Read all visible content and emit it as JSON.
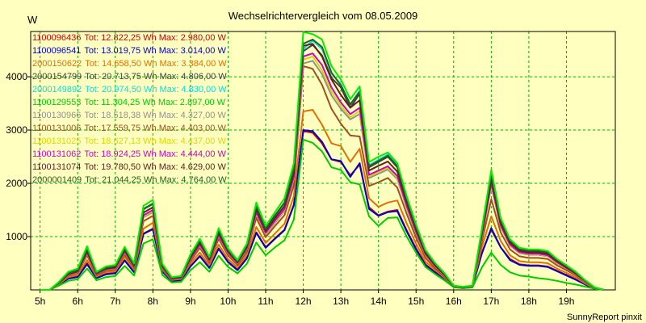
{
  "chart_data": {
    "type": "line",
    "title": "Wechselrichtervergleich vom 08.05.2009",
    "ylabel": "W",
    "xlabel": "",
    "footer": "SunnyReport pinxit",
    "ylim": [
      0,
      4850
    ],
    "xlim": [
      4.75,
      20.3
    ],
    "grid": true,
    "legend_position": "top-left",
    "yticks": [
      1000,
      2000,
      3000,
      4000
    ],
    "xticks": [
      {
        "value": 5,
        "label": "5h"
      },
      {
        "value": 6,
        "label": "6h"
      },
      {
        "value": 7,
        "label": "7h"
      },
      {
        "value": 8,
        "label": "8h"
      },
      {
        "value": 9,
        "label": "9h"
      },
      {
        "value": 10,
        "label": "10h"
      },
      {
        "value": 11,
        "label": "11h"
      },
      {
        "value": 12,
        "label": "12h"
      },
      {
        "value": 13,
        "label": "13h"
      },
      {
        "value": 14,
        "label": "14h"
      },
      {
        "value": 15,
        "label": "15h"
      },
      {
        "value": 16,
        "label": "16h"
      },
      {
        "value": 17,
        "label": "17h"
      },
      {
        "value": 18,
        "label": "18h"
      },
      {
        "value": 19,
        "label": "19h"
      }
    ],
    "x": [
      5.0,
      5.25,
      5.5,
      5.75,
      6.0,
      6.25,
      6.5,
      6.75,
      7.0,
      7.25,
      7.5,
      7.75,
      8.0,
      8.25,
      8.5,
      8.75,
      9.0,
      9.25,
      9.5,
      9.75,
      10.0,
      10.25,
      10.5,
      10.75,
      11.0,
      11.25,
      11.5,
      11.75,
      12.0,
      12.25,
      12.5,
      12.75,
      13.0,
      13.25,
      13.5,
      13.75,
      14.0,
      14.25,
      14.5,
      14.75,
      15.0,
      15.25,
      15.5,
      15.75,
      16.0,
      16.25,
      16.5,
      16.75,
      17.0,
      17.25,
      17.5,
      17.75,
      18.0,
      18.25,
      18.5,
      18.75,
      19.0,
      19.25,
      19.5,
      19.75,
      20.0
    ],
    "series": [
      {
        "name": "1100096436",
        "color": "#cc0000",
        "legend": {
          "id": "1100096436",
          "text": "Tot: 12.822,25 Wh Max: 2.980,00 W"
        },
        "values": [
          0,
          0,
          100,
          220,
          250,
          500,
          230,
          300,
          320,
          560,
          340,
          1060,
          1150,
          350,
          170,
          190,
          450,
          640,
          420,
          780,
          530,
          380,
          600,
          1080,
          800,
          970,
          1130,
          1600,
          2980,
          2950,
          2750,
          2450,
          2400,
          2150,
          2350,
          1550,
          1400,
          1470,
          1500,
          1120,
          780,
          480,
          340,
          210,
          60,
          40,
          60,
          700,
          1130,
          800,
          580,
          480,
          460,
          460,
          440,
          360,
          280,
          200,
          110,
          30,
          0
        ]
      },
      {
        "name": "1100096541",
        "color": "#0000cc",
        "legend": {
          "id": "1100096541",
          "text": "Tot: 13.019,75 Wh Max: 3.014,00 W"
        },
        "values": [
          0,
          0,
          95,
          210,
          240,
          480,
          220,
          290,
          310,
          550,
          330,
          1050,
          1140,
          340,
          165,
          180,
          440,
          630,
          410,
          770,
          520,
          370,
          590,
          1070,
          790,
          960,
          1120,
          1590,
          3000,
          2980,
          2780,
          2450,
          2420,
          2120,
          2380,
          1520,
          1390,
          1460,
          1480,
          1100,
          760,
          460,
          330,
          200,
          55,
          35,
          55,
          680,
          1160,
          800,
          560,
          470,
          450,
          450,
          430,
          350,
          270,
          190,
          100,
          25,
          0
        ]
      },
      {
        "name": "2000150622",
        "color": "#e07000",
        "legend": {
          "id": "2000150622",
          "text": "Tot: 14.658,50 Wh Max: 3.384,00 W"
        },
        "values": [
          0,
          0,
          110,
          240,
          280,
          560,
          250,
          330,
          350,
          620,
          380,
          1150,
          1260,
          380,
          185,
          205,
          500,
          700,
          460,
          850,
          580,
          420,
          660,
          1180,
          880,
          1060,
          1240,
          1760,
          3350,
          3380,
          3100,
          2750,
          2700,
          2400,
          2650,
          1720,
          1560,
          1640,
          1680,
          1250,
          870,
          530,
          380,
          230,
          65,
          45,
          65,
          800,
          1380,
          920,
          650,
          540,
          520,
          520,
          500,
          400,
          320,
          230,
          120,
          35,
          0
        ]
      },
      {
        "name": "2000154799",
        "color": "#404040",
        "legend": {
          "id": "2000154799",
          "text": "Tot: 20.713,75 Wh Max: 4.806,00 W"
        },
        "values": [
          0,
          0,
          140,
          320,
          370,
          770,
          320,
          420,
          450,
          780,
          480,
          1520,
          1620,
          470,
          230,
          250,
          640,
          930,
          600,
          1120,
          750,
          540,
          840,
          1580,
          1150,
          1400,
          1640,
          2280,
          4480,
          4600,
          4400,
          3980,
          3800,
          3420,
          3680,
          2300,
          2400,
          2500,
          2300,
          1700,
          1180,
          720,
          490,
          300,
          75,
          55,
          75,
          1100,
          2150,
          1300,
          920,
          760,
          730,
          730,
          700,
          560,
          440,
          320,
          170,
          45,
          0
        ]
      },
      {
        "name": "2000149892",
        "color": "#00e0e0",
        "legend": {
          "id": "2000149892",
          "text": "Tot: 20.974,50 Wh Max: 4.830,00 W"
        },
        "values": [
          0,
          0,
          135,
          310,
          360,
          760,
          310,
          410,
          440,
          770,
          470,
          1510,
          1610,
          460,
          225,
          245,
          630,
          920,
          590,
          1110,
          740,
          530,
          830,
          1570,
          1140,
          1390,
          1630,
          2270,
          4520,
          4680,
          4520,
          4060,
          3860,
          3480,
          3740,
          2340,
          2440,
          2540,
          2340,
          1720,
          1200,
          730,
          500,
          310,
          75,
          55,
          75,
          1120,
          2180,
          1320,
          930,
          770,
          740,
          740,
          710,
          570,
          450,
          330,
          180,
          45,
          0
        ]
      },
      {
        "name": "1100129553",
        "color": "#00cc00",
        "legend": {
          "id": "1100129553",
          "text": "Tot: 11.304,25 Wh Max: 2.897,00 W"
        },
        "values": [
          0,
          0,
          80,
          170,
          200,
          400,
          180,
          240,
          260,
          450,
          270,
          870,
          950,
          280,
          140,
          150,
          370,
          520,
          340,
          640,
          430,
          310,
          490,
          890,
          650,
          800,
          930,
          1320,
          2820,
          2760,
          2600,
          2300,
          2250,
          2020,
          1980,
          1380,
          1200,
          1350,
          1360,
          1000,
          700,
          430,
          300,
          180,
          50,
          30,
          45,
          420,
          700,
          470,
          330,
          270,
          250,
          220,
          200,
          170,
          130,
          100,
          60,
          20,
          0
        ]
      },
      {
        "name": "1100130966",
        "color": "#909090",
        "legend": {
          "id": "1100130966",
          "text": "Tot: 18.518,38 Wh Max: 4.327,00 W"
        },
        "values": [
          0,
          0,
          125,
          280,
          330,
          680,
          290,
          380,
          400,
          700,
          430,
          1360,
          1460,
          420,
          205,
          225,
          570,
          830,
          540,
          1010,
          680,
          490,
          760,
          1420,
          1040,
          1260,
          1480,
          2060,
          4250,
          4300,
          4050,
          3650,
          3400,
          3200,
          3300,
          2100,
          2180,
          2260,
          2080,
          1540,
          1060,
          650,
          440,
          270,
          70,
          50,
          70,
          990,
          1950,
          1180,
          830,
          690,
          660,
          660,
          630,
          500,
          400,
          290,
          150,
          40,
          0
        ]
      },
      {
        "name": "1100131006",
        "color": "#a05020",
        "legend": {
          "id": "1100131006",
          "text": "Tot: 17.559,75 Wh Max: 4.403,00 W"
        },
        "values": [
          0,
          0,
          118,
          265,
          315,
          650,
          275,
          360,
          380,
          665,
          410,
          1290,
          1390,
          400,
          195,
          215,
          540,
          790,
          510,
          960,
          645,
          465,
          720,
          1350,
          990,
          1200,
          1400,
          1960,
          4200,
          4150,
          3850,
          3400,
          3120,
          2900,
          2880,
          1950,
          2020,
          2100,
          1920,
          1430,
          980,
          600,
          410,
          250,
          65,
          45,
          65,
          900,
          1700,
          1080,
          760,
          630,
          600,
          600,
          580,
          460,
          370,
          270,
          140,
          38,
          0
        ]
      },
      {
        "name": "1100131025",
        "color": "#d8d800",
        "legend": {
          "id": "1100131025",
          "text": "Tot: 18.627,13 Wh Max: 4.437,00 W"
        },
        "values": [
          0,
          0,
          125,
          285,
          335,
          690,
          295,
          385,
          405,
          710,
          435,
          1380,
          1480,
          425,
          208,
          228,
          578,
          840,
          548,
          1020,
          690,
          498,
          772,
          1440,
          1055,
          1280,
          1500,
          2090,
          4320,
          4380,
          4120,
          3720,
          3460,
          3240,
          3360,
          2130,
          2210,
          2290,
          2110,
          1560,
          1075,
          660,
          448,
          275,
          70,
          50,
          70,
          1000,
          1970,
          1190,
          840,
          700,
          670,
          670,
          640,
          510,
          405,
          295,
          155,
          42,
          0
        ]
      },
      {
        "name": "1100131062",
        "color": "#cc00cc",
        "legend": {
          "id": "1100131062",
          "text": "Tot: 18.924,25 Wh Max: 4.444,00 W"
        },
        "values": [
          0,
          0,
          128,
          290,
          340,
          700,
          300,
          390,
          410,
          720,
          440,
          1400,
          1500,
          430,
          210,
          230,
          585,
          850,
          555,
          1030,
          700,
          505,
          780,
          1460,
          1070,
          1300,
          1520,
          2120,
          4380,
          4440,
          4220,
          3800,
          3520,
          3300,
          3420,
          2160,
          2240,
          2320,
          2140,
          1580,
          1090,
          670,
          455,
          280,
          72,
          52,
          72,
          1020,
          2000,
          1210,
          850,
          710,
          680,
          680,
          650,
          520,
          410,
          300,
          160,
          42,
          0
        ]
      },
      {
        "name": "1100131074",
        "color": "#602020",
        "legend": {
          "id": "1100131074",
          "text": "Tot: 19.780,50 Wh Max: 4.629,00 W"
        },
        "values": [
          0,
          0,
          132,
          300,
          350,
          730,
          310,
          400,
          425,
          745,
          455,
          1450,
          1550,
          445,
          218,
          238,
          610,
          885,
          575,
          1070,
          725,
          520,
          810,
          1510,
          1105,
          1345,
          1570,
          2190,
          4580,
          4620,
          4380,
          3950,
          3660,
          3420,
          3560,
          2240,
          2330,
          2410,
          2220,
          1640,
          1135,
          695,
          470,
          290,
          74,
          54,
          74,
          1060,
          2080,
          1250,
          885,
          735,
          705,
          705,
          675,
          540,
          425,
          310,
          165,
          44,
          0
        ]
      },
      {
        "name": "2000001409",
        "color": "#206020",
        "legend": {
          "id": "2000001409",
          "text": "Tot: 21.044,25 Wh Max: 4.764,00 W"
        },
        "values": [
          0,
          0,
          140,
          315,
          365,
          765,
          320,
          415,
          445,
          775,
          475,
          1515,
          1615,
          465,
          228,
          248,
          635,
          925,
          598,
          1115,
          745,
          535,
          835,
          1575,
          1145,
          1395,
          1635,
          2275,
          4620,
          4700,
          4560,
          4080,
          3840,
          3480,
          3720,
          2320,
          2420,
          2520,
          2320,
          1710,
          1190,
          725,
          495,
          305,
          76,
          56,
          76,
          1110,
          2170,
          1310,
          925,
          765,
          735,
          735,
          705,
          565,
          445,
          325,
          175,
          46,
          0
        ]
      },
      {
        "name": "",
        "color": "#00ee00",
        "legend": null,
        "values": [
          0,
          0,
          150,
          340,
          400,
          820,
          340,
          440,
          470,
          810,
          500,
          1580,
          1690,
          490,
          240,
          260,
          670,
          960,
          620,
          1160,
          780,
          560,
          870,
          1640,
          1200,
          1460,
          1720,
          2380,
          4840,
          4800,
          4700,
          4200,
          3950,
          3580,
          3820,
          2400,
          2500,
          2580,
          2380,
          1760,
          1230,
          750,
          510,
          320,
          80,
          60,
          80,
          1150,
          2250,
          1350,
          950,
          790,
          760,
          760,
          730,
          580,
          460,
          340,
          180,
          48,
          0
        ]
      }
    ]
  }
}
